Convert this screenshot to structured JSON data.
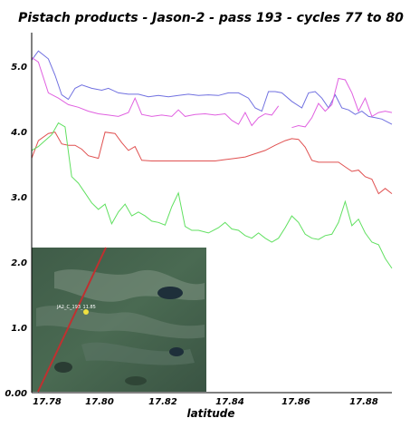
{
  "chart_data": {
    "type": "line",
    "title": "Pistach products - Jason-2 - pass 193 - cycles 77 to 80",
    "xlabel": "latitude",
    "ylabel": "",
    "xlim": [
      17.78,
      17.888
    ],
    "ylim": [
      0.0,
      5.5
    ],
    "x_ticks": [
      "17.78",
      "17.80",
      "17.82",
      "17.84",
      "17.86",
      "17.88"
    ],
    "y_ticks": [
      "0.00",
      "1.0",
      "2.0",
      "3.0",
      "4.0",
      "5.0"
    ],
    "grid": false,
    "legend": "none",
    "inset": {
      "kind": "satellite-image",
      "position": "bottom-left",
      "track_label": "JA2_C_193_11.85"
    },
    "series": [
      {
        "color": "#7070e0",
        "segments": [
          [
            [
              17.78,
              5.08
            ],
            [
              17.782,
              5.22
            ],
            [
              17.785,
              5.1
            ],
            [
              17.787,
              4.85
            ],
            [
              17.789,
              4.55
            ],
            [
              17.791,
              4.48
            ],
            [
              17.793,
              4.65
            ],
            [
              17.795,
              4.7
            ],
            [
              17.798,
              4.65
            ],
            [
              17.801,
              4.62
            ],
            [
              17.803,
              4.65
            ],
            [
              17.806,
              4.58
            ],
            [
              17.809,
              4.56
            ],
            [
              17.812,
              4.56
            ],
            [
              17.815,
              4.52
            ],
            [
              17.818,
              4.54
            ],
            [
              17.821,
              4.52
            ],
            [
              17.824,
              4.54
            ],
            [
              17.827,
              4.56
            ],
            [
              17.83,
              4.54
            ],
            [
              17.833,
              4.55
            ],
            [
              17.836,
              4.54
            ],
            [
              17.839,
              4.58
            ],
            [
              17.842,
              4.58
            ],
            [
              17.845,
              4.5
            ],
            [
              17.847,
              4.35
            ],
            [
              17.849,
              4.3
            ],
            [
              17.851,
              4.6
            ],
            [
              17.853,
              4.6
            ],
            [
              17.855,
              4.58
            ],
            [
              17.858,
              4.45
            ],
            [
              17.861,
              4.35
            ],
            [
              17.863,
              4.58
            ],
            [
              17.865,
              4.6
            ],
            [
              17.867,
              4.5
            ],
            [
              17.869,
              4.35
            ],
            [
              17.871,
              4.55
            ],
            [
              17.873,
              4.35
            ],
            [
              17.875,
              4.32
            ],
            [
              17.877,
              4.25
            ],
            [
              17.879,
              4.3
            ],
            [
              17.881,
              4.22
            ],
            [
              17.883,
              4.2
            ],
            [
              17.885,
              4.18
            ],
            [
              17.888,
              4.1
            ]
          ]
        ]
      },
      {
        "color": "#e060e0",
        "segments": [
          [
            [
              17.78,
              5.12
            ],
            [
              17.782,
              5.05
            ],
            [
              17.785,
              4.58
            ],
            [
              17.788,
              4.5
            ],
            [
              17.791,
              4.4
            ],
            [
              17.794,
              4.36
            ],
            [
              17.797,
              4.3
            ],
            [
              17.8,
              4.26
            ],
            [
              17.803,
              4.24
            ],
            [
              17.806,
              4.22
            ],
            [
              17.809,
              4.28
            ],
            [
              17.811,
              4.5
            ],
            [
              17.813,
              4.25
            ],
            [
              17.816,
              4.22
            ],
            [
              17.819,
              4.24
            ],
            [
              17.822,
              4.22
            ],
            [
              17.824,
              4.32
            ],
            [
              17.826,
              4.22
            ],
            [
              17.829,
              4.25
            ],
            [
              17.832,
              4.26
            ],
            [
              17.835,
              4.24
            ],
            [
              17.838,
              4.26
            ],
            [
              17.84,
              4.16
            ],
            [
              17.842,
              4.1
            ],
            [
              17.844,
              4.28
            ],
            [
              17.846,
              4.08
            ],
            [
              17.848,
              4.2
            ],
            [
              17.85,
              4.26
            ],
            [
              17.852,
              4.24
            ],
            [
              17.854,
              4.38
            ]
          ],
          [
            [
              17.858,
              4.05
            ],
            [
              17.86,
              4.08
            ],
            [
              17.862,
              4.06
            ],
            [
              17.864,
              4.2
            ],
            [
              17.866,
              4.42
            ],
            [
              17.868,
              4.3
            ],
            [
              17.87,
              4.4
            ],
            [
              17.872,
              4.8
            ],
            [
              17.874,
              4.78
            ],
            [
              17.876,
              4.58
            ],
            [
              17.878,
              4.3
            ],
            [
              17.88,
              4.5
            ],
            [
              17.882,
              4.22
            ],
            [
              17.884,
              4.28
            ],
            [
              17.886,
              4.3
            ],
            [
              17.888,
              4.28
            ]
          ]
        ]
      },
      {
        "color": "#e05050",
        "segments": [
          [
            [
              17.78,
              3.58
            ],
            [
              17.782,
              3.85
            ],
            [
              17.785,
              3.96
            ],
            [
              17.787,
              3.98
            ],
            [
              17.789,
              3.8
            ],
            [
              17.791,
              3.78
            ],
            [
              17.793,
              3.78
            ],
            [
              17.795,
              3.72
            ],
            [
              17.797,
              3.62
            ],
            [
              17.8,
              3.58
            ],
            [
              17.802,
              3.98
            ],
            [
              17.805,
              3.96
            ],
            [
              17.807,
              3.82
            ],
            [
              17.809,
              3.7
            ],
            [
              17.811,
              3.76
            ],
            [
              17.813,
              3.55
            ],
            [
              17.816,
              3.54
            ],
            [
              17.82,
              3.54
            ],
            [
              17.825,
              3.54
            ],
            [
              17.83,
              3.54
            ],
            [
              17.835,
              3.54
            ],
            [
              17.838,
              3.56
            ],
            [
              17.841,
              3.58
            ],
            [
              17.844,
              3.6
            ],
            [
              17.847,
              3.65
            ],
            [
              17.85,
              3.7
            ],
            [
              17.853,
              3.78
            ],
            [
              17.856,
              3.85
            ],
            [
              17.858,
              3.88
            ],
            [
              17.86,
              3.87
            ],
            [
              17.862,
              3.75
            ],
            [
              17.864,
              3.55
            ],
            [
              17.866,
              3.52
            ],
            [
              17.869,
              3.52
            ],
            [
              17.872,
              3.52
            ],
            [
              17.874,
              3.45
            ],
            [
              17.876,
              3.38
            ],
            [
              17.878,
              3.4
            ],
            [
              17.88,
              3.3
            ],
            [
              17.882,
              3.26
            ],
            [
              17.884,
              3.04
            ],
            [
              17.886,
              3.12
            ],
            [
              17.888,
              3.04
            ]
          ]
        ]
      },
      {
        "color": "#60e060",
        "segments": [
          [
            [
              17.78,
              3.7
            ],
            [
              17.782,
              3.76
            ],
            [
              17.784,
              3.85
            ],
            [
              17.786,
              3.94
            ],
            [
              17.788,
              4.12
            ],
            [
              17.79,
              4.06
            ],
            [
              17.792,
              3.3
            ],
            [
              17.794,
              3.2
            ],
            [
              17.796,
              3.05
            ],
            [
              17.798,
              2.9
            ],
            [
              17.8,
              2.8
            ],
            [
              17.802,
              2.88
            ],
            [
              17.804,
              2.58
            ],
            [
              17.806,
              2.76
            ],
            [
              17.808,
              2.88
            ],
            [
              17.81,
              2.7
            ],
            [
              17.812,
              2.76
            ],
            [
              17.814,
              2.7
            ],
            [
              17.816,
              2.62
            ],
            [
              17.818,
              2.6
            ],
            [
              17.82,
              2.56
            ],
            [
              17.822,
              2.84
            ],
            [
              17.824,
              3.05
            ],
            [
              17.826,
              2.54
            ],
            [
              17.828,
              2.48
            ],
            [
              17.83,
              2.48
            ],
            [
              17.833,
              2.44
            ],
            [
              17.836,
              2.52
            ],
            [
              17.838,
              2.6
            ],
            [
              17.84,
              2.5
            ],
            [
              17.842,
              2.48
            ],
            [
              17.844,
              2.4
            ],
            [
              17.846,
              2.36
            ],
            [
              17.848,
              2.44
            ],
            [
              17.85,
              2.36
            ],
            [
              17.852,
              2.3
            ],
            [
              17.854,
              2.36
            ],
            [
              17.856,
              2.52
            ],
            [
              17.858,
              2.7
            ],
            [
              17.86,
              2.6
            ],
            [
              17.862,
              2.42
            ],
            [
              17.864,
              2.36
            ],
            [
              17.866,
              2.34
            ],
            [
              17.868,
              2.4
            ],
            [
              17.87,
              2.42
            ],
            [
              17.872,
              2.6
            ],
            [
              17.874,
              2.92
            ],
            [
              17.876,
              2.55
            ],
            [
              17.878,
              2.65
            ],
            [
              17.88,
              2.44
            ],
            [
              17.882,
              2.3
            ],
            [
              17.884,
              2.26
            ],
            [
              17.886,
              2.05
            ],
            [
              17.888,
              1.9
            ]
          ]
        ]
      }
    ]
  }
}
